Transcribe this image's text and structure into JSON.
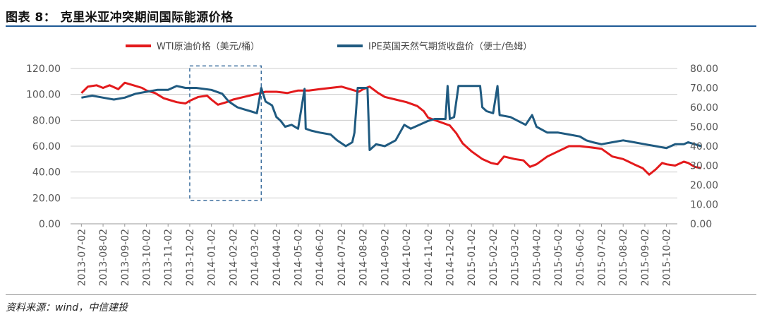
{
  "figure": {
    "title": "图表 8：   克里米亚冲突期间国际能源价格",
    "source": "资料来源：wind，中信建投"
  },
  "colors": {
    "wti": "#e31a1c",
    "ipe": "#1f5a80",
    "grid": "#cccccc",
    "box": "#3d6f9e"
  },
  "chart_data": {
    "type": "line",
    "title": "",
    "x_labels": [
      "2013-07-02",
      "2013-08-02",
      "2013-09-02",
      "2013-10-02",
      "2013-11-02",
      "2013-12-02",
      "2014-01-02",
      "2014-02-02",
      "2014-03-02",
      "2014-04-02",
      "2014-05-02",
      "2014-06-02",
      "2014-07-02",
      "2014-08-02",
      "2014-09-02",
      "2014-10-02",
      "2014-11-02",
      "2014-12-02",
      "2015-01-02",
      "2015-02-02",
      "2015-03-02",
      "2015-04-02",
      "2015-05-02",
      "2015-06-02",
      "2015-07-02",
      "2015-08-02",
      "2015-09-02",
      "2015-10-02"
    ],
    "y_left": {
      "min": 0,
      "max": 120,
      "step": 20,
      "tick_labels": [
        "0.00",
        "20.00",
        "40.00",
        "60.00",
        "80.00",
        "100.00",
        "120.00"
      ]
    },
    "y_right": {
      "min": 0,
      "max": 80,
      "step": 10,
      "tick_labels": [
        "0.00",
        "10.00",
        "20.00",
        "30.00",
        "40.00",
        "50.00",
        "60.00",
        "70.00",
        "80.00"
      ]
    },
    "highlight_box": {
      "x_start": 5.0,
      "x_end": 8.3,
      "y_bottom": 18,
      "y_top": 122,
      "style": "dashed"
    },
    "series": [
      {
        "name": "WTI原油价格（美元/桶）",
        "axis": "left",
        "color_key": "wti",
        "points": [
          [
            0,
            101
          ],
          [
            0.3,
            106
          ],
          [
            0.7,
            107
          ],
          [
            1,
            105
          ],
          [
            1.3,
            107
          ],
          [
            1.7,
            104
          ],
          [
            2,
            109
          ],
          [
            2.4,
            107
          ],
          [
            2.8,
            105
          ],
          [
            3,
            103
          ],
          [
            3.4,
            101
          ],
          [
            3.8,
            97
          ],
          [
            4,
            96
          ],
          [
            4.4,
            94
          ],
          [
            4.8,
            93
          ],
          [
            5,
            95
          ],
          [
            5.4,
            98
          ],
          [
            5.8,
            99
          ],
          [
            6,
            96
          ],
          [
            6.3,
            92
          ],
          [
            6.7,
            94
          ],
          [
            7,
            96
          ],
          [
            7.5,
            98
          ],
          [
            8,
            100
          ],
          [
            8.5,
            102
          ],
          [
            9,
            102
          ],
          [
            9.5,
            101
          ],
          [
            10,
            103
          ],
          [
            10.5,
            103
          ],
          [
            11,
            104
          ],
          [
            11.5,
            105
          ],
          [
            12,
            106
          ],
          [
            12.4,
            104
          ],
          [
            12.8,
            102
          ],
          [
            13,
            104
          ],
          [
            13.3,
            106
          ],
          [
            13.7,
            101
          ],
          [
            14,
            98
          ],
          [
            14.5,
            96
          ],
          [
            15,
            94
          ],
          [
            15.5,
            91
          ],
          [
            15.8,
            87
          ],
          [
            16,
            82
          ],
          [
            16.5,
            79
          ],
          [
            17,
            76
          ],
          [
            17.3,
            70
          ],
          [
            17.6,
            62
          ],
          [
            18,
            56
          ],
          [
            18.5,
            50
          ],
          [
            18.9,
            47
          ],
          [
            19.2,
            46
          ],
          [
            19.5,
            52
          ],
          [
            20,
            50
          ],
          [
            20.4,
            49
          ],
          [
            20.7,
            44
          ],
          [
            21,
            46
          ],
          [
            21.5,
            52
          ],
          [
            22,
            56
          ],
          [
            22.5,
            60
          ],
          [
            23,
            60
          ],
          [
            23.5,
            59
          ],
          [
            24,
            58
          ],
          [
            24.5,
            52
          ],
          [
            25,
            50
          ],
          [
            25.5,
            46
          ],
          [
            25.9,
            43
          ],
          [
            26.2,
            38
          ],
          [
            26.5,
            42
          ],
          [
            26.8,
            47
          ],
          [
            27,
            46
          ],
          [
            27.4,
            45
          ],
          [
            27.8,
            48
          ],
          [
            28,
            47
          ],
          [
            28.3,
            44
          ],
          [
            28.6,
            43
          ]
        ]
      },
      {
        "name": "IPE英国天然气期货收盘价（便士/色姆）",
        "axis": "right",
        "color_key": "ipe",
        "points": [
          [
            0,
            65
          ],
          [
            0.5,
            66
          ],
          [
            1,
            65
          ],
          [
            1.5,
            64
          ],
          [
            2,
            65
          ],
          [
            2.5,
            67
          ],
          [
            3,
            68
          ],
          [
            3.5,
            69
          ],
          [
            4,
            69
          ],
          [
            4.4,
            71
          ],
          [
            4.8,
            70
          ],
          [
            5.3,
            70
          ],
          [
            6,
            69
          ],
          [
            6.5,
            67
          ],
          [
            6.8,
            63
          ],
          [
            7.2,
            60
          ],
          [
            7.5,
            59
          ],
          [
            7.8,
            58
          ],
          [
            8.1,
            57
          ],
          [
            8.3,
            70
          ],
          [
            8.5,
            63
          ],
          [
            8.8,
            61
          ],
          [
            9,
            55
          ],
          [
            9.2,
            53
          ],
          [
            9.4,
            50
          ],
          [
            9.7,
            51
          ],
          [
            10,
            49
          ],
          [
            10.3,
            69.5
          ],
          [
            10.35,
            49
          ],
          [
            10.6,
            48
          ],
          [
            11,
            47
          ],
          [
            11.5,
            46
          ],
          [
            11.8,
            43
          ],
          [
            12.2,
            40
          ],
          [
            12.5,
            42
          ],
          [
            12.6,
            47
          ],
          [
            12.75,
            70
          ],
          [
            13.2,
            70
          ],
          [
            13.3,
            38
          ],
          [
            13.6,
            41
          ],
          [
            14,
            40
          ],
          [
            14.5,
            43
          ],
          [
            14.9,
            51
          ],
          [
            15.2,
            49
          ],
          [
            15.6,
            51
          ],
          [
            16,
            53
          ],
          [
            16.3,
            54
          ],
          [
            16.8,
            54
          ],
          [
            16.9,
            71
          ],
          [
            17,
            54
          ],
          [
            17.2,
            55
          ],
          [
            17.4,
            71
          ],
          [
            18.4,
            71
          ],
          [
            18.5,
            60
          ],
          [
            18.7,
            58
          ],
          [
            19,
            57
          ],
          [
            19.2,
            71
          ],
          [
            19.3,
            56
          ],
          [
            19.8,
            55
          ],
          [
            20.5,
            51
          ],
          [
            20.8,
            56
          ],
          [
            21,
            50
          ],
          [
            21.5,
            47
          ],
          [
            22,
            47
          ],
          [
            22.5,
            46
          ],
          [
            23,
            45
          ],
          [
            23.3,
            43
          ],
          [
            23.6,
            42
          ],
          [
            24,
            41
          ],
          [
            24.5,
            42
          ],
          [
            25,
            43
          ],
          [
            25.5,
            42
          ],
          [
            26,
            41
          ],
          [
            26.5,
            40
          ],
          [
            27,
            39
          ],
          [
            27.4,
            41
          ],
          [
            27.8,
            41
          ],
          [
            28,
            42
          ],
          [
            28.3,
            41
          ],
          [
            28.6,
            40
          ]
        ]
      }
    ]
  }
}
